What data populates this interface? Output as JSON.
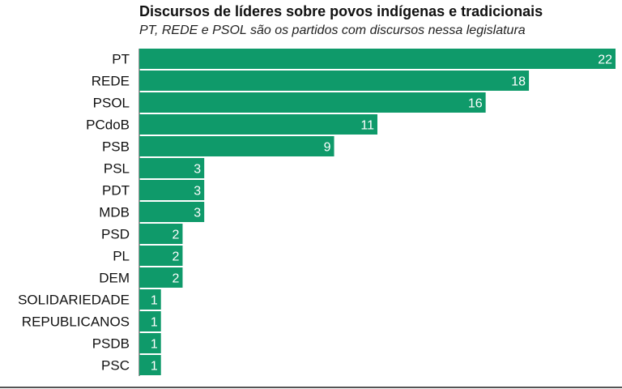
{
  "chart_data": {
    "type": "bar",
    "orientation": "horizontal",
    "title": "Discursos de líderes sobre povos indígenas e tradicionais",
    "subtitle": "PT, REDE e PSOL são os partidos com discursos nessa legislatura",
    "categories": [
      "PT",
      "REDE",
      "PSOL",
      "PCdoB",
      "PSB",
      "PSL",
      "PDT",
      "MDB",
      "PSD",
      "PL",
      "DEM",
      "SOLIDARIEDADE",
      "REPUBLICANOS",
      "PSDB",
      "PSC"
    ],
    "values": [
      22,
      18,
      16,
      11,
      9,
      3,
      3,
      3,
      2,
      2,
      2,
      1,
      1,
      1,
      1
    ],
    "data_labels": true,
    "xlim": [
      0,
      22
    ],
    "grid": false,
    "bar_color": "#0f9a6a",
    "label_color": "#ffffff"
  }
}
